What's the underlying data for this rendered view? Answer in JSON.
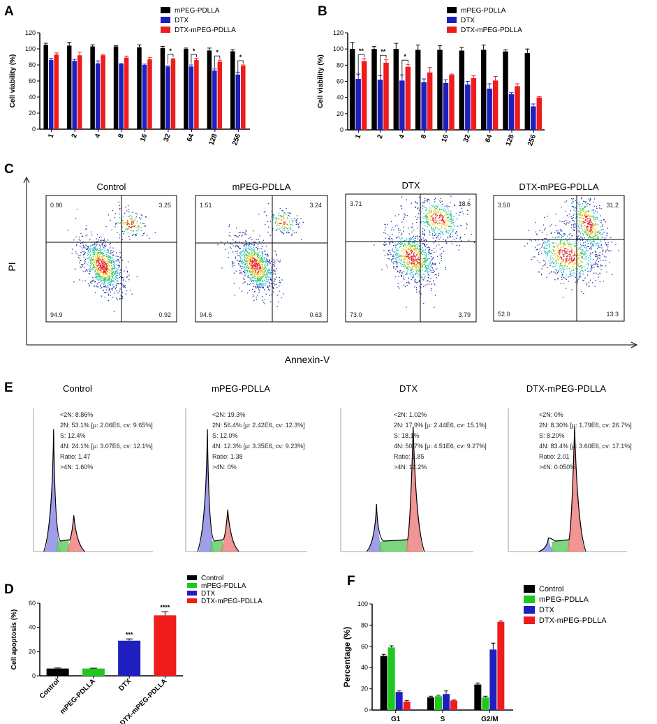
{
  "figure_title": "",
  "colors": {
    "black": "#000000",
    "green": "#1ec81e",
    "blue": "#1f1fbf",
    "red": "#ee1c1c"
  },
  "chart_data": [
    {
      "id": "A",
      "panel": "A",
      "type": "bar",
      "ylabel": "Cell viability (%)",
      "xlabel": "",
      "ylim": [
        0,
        120
      ],
      "yticks": [
        0,
        20,
        40,
        60,
        80,
        100,
        120
      ],
      "categories": [
        "1",
        "2",
        "4",
        "8",
        "16",
        "32",
        "64",
        "128",
        "256"
      ],
      "series": [
        {
          "name": "mPEG-PDLLA",
          "color": "#000000",
          "values": [
            105,
            104,
            103,
            103,
            102,
            101,
            100,
            98,
            97
          ],
          "errors": [
            2,
            4,
            2,
            1,
            3,
            2,
            1,
            3,
            2
          ]
        },
        {
          "name": "DTX",
          "color": "#1f1fbf",
          "values": [
            86,
            85,
            82,
            81,
            80,
            78,
            78,
            73,
            68
          ],
          "errors": [
            2,
            2,
            3,
            1,
            1,
            1,
            2,
            2,
            3
          ]
        },
        {
          "name": "DTX-mPEG-PDLLA",
          "color": "#ee1c1c",
          "values": [
            93,
            92,
            92,
            89,
            87,
            87,
            86,
            84,
            79
          ],
          "errors": [
            2,
            4,
            1,
            2,
            2,
            1,
            2,
            2,
            1
          ]
        }
      ],
      "significance": [
        {
          "category": "32",
          "label": "*"
        },
        {
          "category": "64",
          "label": "*"
        },
        {
          "category": "128",
          "label": "*"
        },
        {
          "category": "256",
          "label": "*"
        }
      ]
    },
    {
      "id": "B",
      "panel": "B",
      "type": "bar",
      "ylabel": "Cell viability (%)",
      "xlabel": "",
      "ylim": [
        0,
        120
      ],
      "yticks": [
        0,
        20,
        40,
        60,
        80,
        100,
        120
      ],
      "categories": [
        "1",
        "2",
        "4",
        "8",
        "16",
        "32",
        "64",
        "128",
        "256"
      ],
      "series": [
        {
          "name": "mPEG-PDLLA",
          "color": "#000000",
          "values": [
            100,
            100,
            100,
            99,
            99,
            98,
            99,
            97,
            95
          ],
          "errors": [
            8,
            3,
            7,
            6,
            5,
            4,
            6,
            2,
            5
          ]
        },
        {
          "name": "DTX",
          "color": "#1f1fbf",
          "values": [
            63,
            62,
            61,
            59,
            58,
            56,
            51,
            44,
            29
          ],
          "errors": [
            6,
            5,
            7,
            4,
            4,
            4,
            6,
            2,
            3
          ]
        },
        {
          "name": "DTX-mPEG-PDLLA",
          "color": "#ee1c1c",
          "values": [
            85,
            83,
            78,
            71,
            68,
            64,
            61,
            54,
            40
          ],
          "errors": [
            3,
            4,
            3,
            6,
            1,
            3,
            5,
            3,
            1
          ]
        }
      ],
      "significance": [
        {
          "category": "1",
          "label": "**"
        },
        {
          "category": "2",
          "label": "**"
        },
        {
          "category": "4",
          "label": "*"
        }
      ]
    },
    {
      "id": "D",
      "panel": "D",
      "type": "bar",
      "ylabel": "Cell apoptosis (%)",
      "xlabel": "",
      "ylim": [
        0,
        60
      ],
      "yticks": [
        0,
        20,
        40,
        60
      ],
      "categories": [
        "Control",
        "mPEG-PDLLA",
        "DTX",
        "DTX-mPEG-PDLLA"
      ],
      "values": [
        6,
        6,
        29,
        50
      ],
      "errors": [
        0.5,
        0.3,
        1.5,
        3
      ],
      "colors": [
        "#000000",
        "#1ec81e",
        "#1f1fbf",
        "#ee1c1c"
      ],
      "significance": [
        "",
        "",
        "***",
        "****"
      ],
      "legend": [
        "Control",
        "mPEG-PDLLA",
        "DTX",
        "DTX-mPEG-PDLLA"
      ]
    },
    {
      "id": "F",
      "panel": "F",
      "type": "bar",
      "ylabel": "Percentage (%)",
      "xlabel": "",
      "ylim": [
        0,
        100
      ],
      "yticks": [
        0,
        20,
        40,
        60,
        80,
        100
      ],
      "categories": [
        "G1",
        "S",
        "G2/M"
      ],
      "series": [
        {
          "name": "Control",
          "color": "#000000",
          "values": [
            51,
            12,
            24
          ],
          "errors": [
            1.5,
            1,
            1.5
          ]
        },
        {
          "name": "mPEG-PDLLA",
          "color": "#1ec81e",
          "values": [
            59,
            13,
            12
          ],
          "errors": [
            1.5,
            1,
            1
          ]
        },
        {
          "name": "DTX",
          "color": "#1f1fbf",
          "values": [
            17,
            15,
            57
          ],
          "errors": [
            1,
            3,
            6
          ]
        },
        {
          "name": "DTX-mPEG-PDLLA",
          "color": "#ee1c1c",
          "values": [
            8,
            9,
            83
          ],
          "errors": [
            1,
            0.5,
            1
          ]
        }
      ]
    }
  ],
  "panel_c": {
    "letter": "C",
    "y_axis_label": "PI",
    "x_axis_label": "Annexin-V",
    "plots": [
      {
        "title": "Control",
        "q1": "0.90",
        "q2": "3.25",
        "q3": "94.9",
        "q4": "0.92"
      },
      {
        "title": "mPEG-PDLLA",
        "q1": "1.51",
        "q2": "3.24",
        "q3": "94.6",
        "q4": "0.63"
      },
      {
        "title": "DTX",
        "q1": "3.71",
        "q2": "18.6",
        "q3": "73.0",
        "q4": "3.79"
      },
      {
        "title": "DTX-mPEG-PDLLA",
        "q1": "3.50",
        "q2": "31.2",
        "q3": "52.0",
        "q4": "13.3"
      }
    ]
  },
  "panel_e": {
    "letter": "E",
    "plots": [
      {
        "title": "Control",
        "lines": [
          "<2N: 8.86%",
          "2N: 53.1%  [μ: 2.06E6, cv: 9.65%]",
          "S: 12.4%",
          "4N: 24.1%  [μ: 3.07E6, cv: 12.1%]",
          "Ratio: 1.47",
          ">4N: 1.60%"
        ]
      },
      {
        "title": "mPEG-PDLLA",
        "lines": [
          "<2N: 19.3%",
          "2N: 56.4%  [μ: 2.42E6, cv: 12.3%]",
          "S: 12.0%",
          "4N: 12.3%  [μ: 3.35E6, cv: 9.23%]",
          "Ratio: 1.38",
          ">4N: 0%"
        ]
      },
      {
        "title": "DTX",
        "lines": [
          "<2N: 1.02%",
          "2N: 17.9%  [μ: 2.44E6, cv: 15.1%]",
          "S: 18.1%",
          "4N: 50.7%  [μ: 4.51E6, cv: 9.27%]",
          "Ratio: 1.85",
          ">4N: 12.2%"
        ]
      },
      {
        "title": "DTX-mPEG-PDLLA",
        "lines": [
          "<2N: 0%",
          "2N: 8.30%  [μ: 1.79E6, cv: 26.7%]",
          "S: 8.20%",
          "4N: 83.4%  [μ: 3.60E6, cv: 17.1%]",
          "Ratio: 2.01",
          ">4N: 0.050%"
        ]
      }
    ]
  }
}
